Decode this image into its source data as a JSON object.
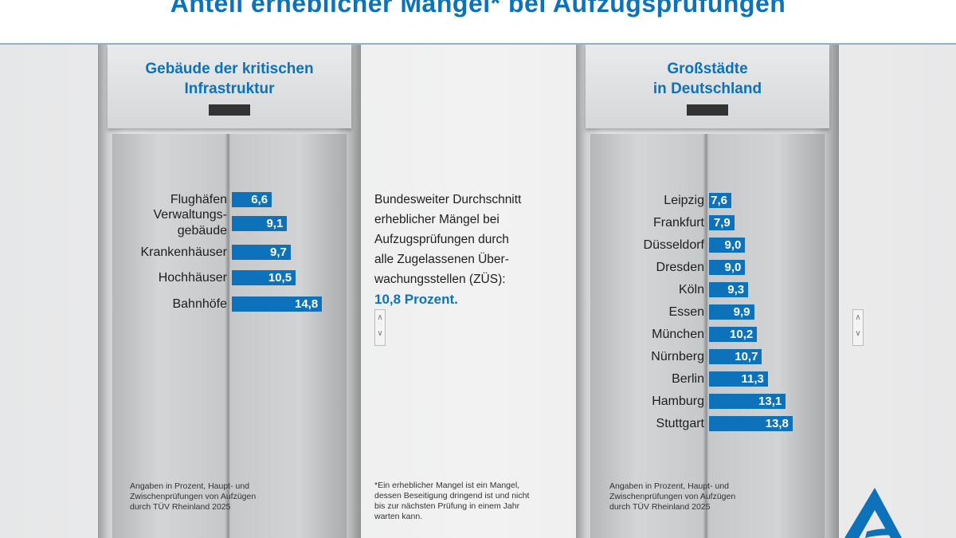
{
  "title": "Anteil erheblicher Mängel* bei Aufzugsprüfungen",
  "chart_data": [
    {
      "type": "bar",
      "orientation": "horizontal",
      "title": "Gebäude der kritischen Infrastruktur",
      "categories": [
        "Flughäfen",
        "Verwaltungs-\ngebäude",
        "Krankenhäuser",
        "Hochhäuser",
        "Bahnhöfe"
      ],
      "values": [
        6.6,
        9.1,
        9.7,
        10.5,
        14.8
      ],
      "value_labels": [
        "6,6",
        "9,1",
        "9,7",
        "10,5",
        "14,8"
      ],
      "unit": "%",
      "color": "#0d72b9"
    },
    {
      "type": "bar",
      "orientation": "horizontal",
      "title": "Großstädte in Deutschland",
      "categories": [
        "Leipzig",
        "Frankfurt",
        "Düsseldorf",
        "Dresden",
        "Köln",
        "Essen",
        "München",
        "Nürnberg",
        "Berlin",
        "Hamburg",
        "Stuttgart"
      ],
      "values": [
        7.6,
        7.9,
        9.0,
        9.0,
        9.3,
        9.9,
        10.2,
        10.7,
        11.3,
        13.1,
        13.8
      ],
      "value_labels": [
        "7,6",
        "7,9",
        "9,0",
        "9,0",
        "9,3",
        "9,9",
        "10,2",
        "10,7",
        "11,3",
        "13,1",
        "13,8"
      ],
      "unit": "%",
      "color": "#0d72b9"
    }
  ],
  "left": {
    "heading1": "Gebäude der kritischen",
    "heading2": "Infrastruktur",
    "note": [
      "Angaben in Prozent, Haupt- und",
      "Zwischenprüfungen von Aufzügen",
      "durch TÜV Rheinland 2025"
    ]
  },
  "right": {
    "heading1": "Großstädte",
    "heading2": "in Deutschland",
    "note": [
      "Angaben in Prozent, Haupt- und",
      "Zwischenprüfungen von Aufzügen",
      "durch TÜV Rheinland 2025"
    ]
  },
  "middle": {
    "lines": [
      "Bundesweiter Durchschnitt",
      "erheblicher Mängel bei",
      "Aufzugsprüfungen durch",
      "alle Zugelassenen Über-",
      "wachungsstellen (ZÜS):"
    ],
    "highlight": "10,8 Prozent.",
    "footnote": [
      "*Ein erheblicher Mangel ist ein Mangel,",
      "dessen Beseitigung dringend ist und nicht",
      "bis zur nächsten Prüfung in einem Jahr",
      "warten kann."
    ]
  },
  "button_glyphs": {
    "up": "∧",
    "down": "∨"
  }
}
